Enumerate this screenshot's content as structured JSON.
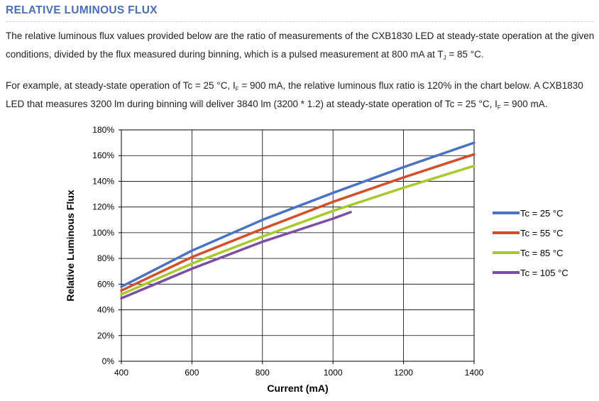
{
  "section": {
    "title": "RELATIVE LUMINOUS FLUX"
  },
  "intro": {
    "p1_text": "The relative luminous flux values provided below are the ratio of measurements of the CXB1830 LED at steady-state operation at the given conditions, divided by the flux measured during binning, which is a pulsed measurement at 800 mA at T",
    "p1_sub": "J",
    "p1_tail": " = 85 °C.",
    "p2_text": "For example, at steady-state operation of Tc = 25 °C, I",
    "p2_sub": "F",
    "p2_mid": " = 900 mA, the relative luminous flux ratio is 120% in the chart below. A CXB1830 LED that measures 3200 lm during binning will deliver 3840 lm (3200 * 1.2) at steady-state operation of Tc = 25 °C, I",
    "p2_sub2": "F",
    "p2_tail": " = 900 mA."
  },
  "chart_data": {
    "type": "line",
    "title": "",
    "xlabel": "Current (mA)",
    "ylabel": "Relative Luminous Flux",
    "xlim": [
      400,
      1400
    ],
    "ylim": [
      0,
      180
    ],
    "x_ticks": [
      400,
      600,
      800,
      1000,
      1200,
      1400
    ],
    "y_ticks": [
      0,
      20,
      40,
      60,
      80,
      100,
      120,
      140,
      160,
      180
    ],
    "y_tick_labels": [
      "0%",
      "20%",
      "40%",
      "60%",
      "80%",
      "100%",
      "120%",
      "140%",
      "160%",
      "180%"
    ],
    "grid": true,
    "legend": "right",
    "series": [
      {
        "name": "Tc = 25 °C",
        "color": "#4a72c4",
        "x": [
          400,
          600,
          800,
          1000,
          1200,
          1400
        ],
        "values": [
          58,
          86,
          110,
          131,
          151,
          170
        ]
      },
      {
        "name": "Tc = 55 °C",
        "color": "#d1502b",
        "x": [
          400,
          600,
          800,
          1000,
          1200,
          1400
        ],
        "values": [
          55,
          81,
          103,
          124,
          143,
          161
        ]
      },
      {
        "name": "Tc = 85 °C",
        "color": "#a8c92c",
        "x": [
          400,
          600,
          800,
          1000,
          1200,
          1400
        ],
        "values": [
          52,
          76,
          97,
          117,
          135,
          152
        ]
      },
      {
        "name": "Tc = 105 °C",
        "color": "#7b4ea3",
        "x": [
          400,
          600,
          800,
          1000,
          1050
        ],
        "values": [
          49,
          72,
          93,
          111,
          116
        ]
      }
    ]
  }
}
